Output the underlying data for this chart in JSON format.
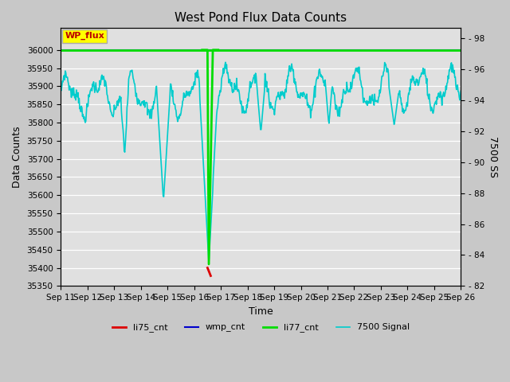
{
  "title": "West Pond Flux Data Counts",
  "xlabel": "Time",
  "ylabel_left": "Data Counts",
  "ylabel_right": "7500 SS",
  "ylim_left": [
    35350,
    36060
  ],
  "ylim_right": [
    82,
    98.667
  ],
  "yticks_left": [
    35350,
    35400,
    35450,
    35500,
    35550,
    35600,
    35650,
    35700,
    35750,
    35800,
    35850,
    35900,
    35950,
    36000
  ],
  "yticks_right": [
    82,
    84,
    86,
    88,
    90,
    92,
    94,
    96,
    98
  ],
  "fig_bg_color": "#c8c8c8",
  "plot_bg_color": "#e0e0e0",
  "grid_color": "#ffffff",
  "li77_cnt_color": "#00dd00",
  "li75_cnt_color": "#dd0000",
  "wmp_cnt_color": "#0000cc",
  "signal_color": "#00cccc",
  "annotation_box_facecolor": "#ffff00",
  "annotation_box_edgecolor": "#aaaaaa",
  "annotation_text_color": "#bb0000",
  "annotation_text": "WP_flux",
  "legend_labels": [
    "li75_cnt",
    "wmp_cnt",
    "li77_cnt",
    "7500 Signal"
  ]
}
